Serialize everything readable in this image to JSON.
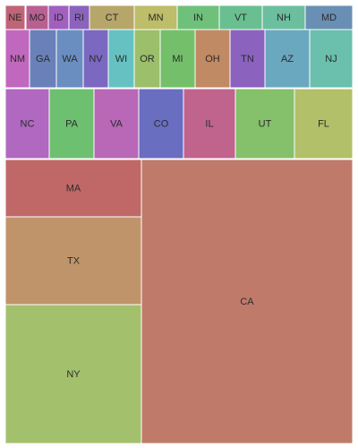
{
  "chart_data": {
    "type": "treemap",
    "title": "",
    "cells": [
      {
        "label": "NE",
        "color": "#c06478"
      },
      {
        "label": "MO",
        "color": "#b86092"
      },
      {
        "label": "ID",
        "color": "#a15fc0"
      },
      {
        "label": "RI",
        "color": "#8b63bd"
      },
      {
        "label": "CT",
        "color": "#b6a66a"
      },
      {
        "label": "MN",
        "color": "#bdbd6a"
      },
      {
        "label": "IN",
        "color": "#6fc07b"
      },
      {
        "label": "VT",
        "color": "#6abf90"
      },
      {
        "label": "NH",
        "color": "#6bbf9e"
      },
      {
        "label": "MD",
        "color": "#6a8fb4"
      },
      {
        "label": "NM",
        "color": "#c068bd"
      },
      {
        "label": "GA",
        "color": "#6a80b8"
      },
      {
        "label": "WA",
        "color": "#6a8ec0"
      },
      {
        "label": "NV",
        "color": "#7b68c0"
      },
      {
        "label": "WI",
        "color": "#66c2c2"
      },
      {
        "label": "OR",
        "color": "#9bbf6a"
      },
      {
        "label": "MI",
        "color": "#74c06a"
      },
      {
        "label": "OH",
        "color": "#c08a64"
      },
      {
        "label": "TN",
        "color": "#8c62bf"
      },
      {
        "label": "AZ",
        "color": "#6aa8c0"
      },
      {
        "label": "NJ",
        "color": "#6ac0ac"
      },
      {
        "label": "NC",
        "color": "#b068c0"
      },
      {
        "label": "PA",
        "color": "#6cc070"
      },
      {
        "label": "VA",
        "color": "#b868b6"
      },
      {
        "label": "CO",
        "color": "#6a6ec0"
      },
      {
        "label": "IL",
        "color": "#c0648e"
      },
      {
        "label": "UT",
        "color": "#85c06a"
      },
      {
        "label": "FL",
        "color": "#b2c06a"
      },
      {
        "label": "MA",
        "color": "#c06868"
      },
      {
        "label": "TX",
        "color": "#c0946a"
      },
      {
        "label": "NY",
        "color": "#a3c06c"
      },
      {
        "label": "CA",
        "color": "#c07a6a"
      }
    ]
  }
}
